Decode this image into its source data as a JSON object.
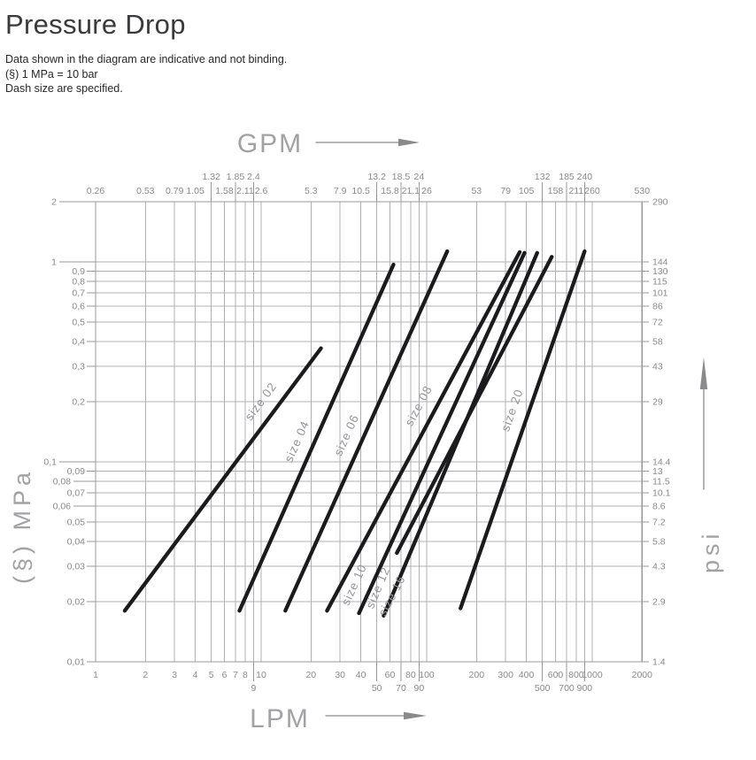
{
  "page": {
    "title": "Pressure Drop",
    "notes": [
      "Data shown in the diagram are indicative and not binding.",
      "(§) 1 MPa = 10 bar",
      "Dash size are specified."
    ]
  },
  "chart_data": {
    "type": "line",
    "x_scale": "log",
    "y_scale": "log",
    "x_axis_bottom": {
      "label": "LPM",
      "min": 1,
      "max": 2000,
      "ticks": [
        {
          "v": 1,
          "t": "1",
          "row": 1
        },
        {
          "v": 2,
          "t": "2",
          "row": 1
        },
        {
          "v": 3,
          "t": "3",
          "row": 1
        },
        {
          "v": 4,
          "t": "4",
          "row": 1
        },
        {
          "v": 5,
          "t": "5",
          "row": 1
        },
        {
          "v": 6,
          "t": "6",
          "row": 1
        },
        {
          "v": 7,
          "t": "7",
          "row": 1
        },
        {
          "v": 8,
          "t": "8",
          "row": 1
        },
        {
          "v": 9,
          "t": "9",
          "row": 2
        },
        {
          "v": 10,
          "t": "10",
          "row": 1
        },
        {
          "v": 20,
          "t": "20",
          "row": 1
        },
        {
          "v": 30,
          "t": "30",
          "row": 1
        },
        {
          "v": 40,
          "t": "40",
          "row": 1
        },
        {
          "v": 50,
          "t": "50",
          "row": 2
        },
        {
          "v": 60,
          "t": "60",
          "row": 1
        },
        {
          "v": 70,
          "t": "70",
          "row": 2
        },
        {
          "v": 80,
          "t": "80",
          "row": 1
        },
        {
          "v": 90,
          "t": "90",
          "row": 2
        },
        {
          "v": 100,
          "t": "100",
          "row": 1
        },
        {
          "v": 200,
          "t": "200",
          "row": 1
        },
        {
          "v": 300,
          "t": "300",
          "row": 1
        },
        {
          "v": 400,
          "t": "400",
          "row": 1
        },
        {
          "v": 500,
          "t": "500",
          "row": 2
        },
        {
          "v": 600,
          "t": "600",
          "row": 1
        },
        {
          "v": 700,
          "t": "700",
          "row": 2
        },
        {
          "v": 800,
          "t": "800",
          "row": 1
        },
        {
          "v": 900,
          "t": "900",
          "row": 2
        },
        {
          "v": 1000,
          "t": "1000",
          "row": 1
        },
        {
          "v": 2000,
          "t": "2000",
          "row": 1
        }
      ]
    },
    "x_axis_top": {
      "label": "GPM",
      "ticks": [
        {
          "v": 1,
          "t": "0.26",
          "raised": false
        },
        {
          "v": 2,
          "t": "0.53",
          "raised": false
        },
        {
          "v": 3,
          "t": "0.79",
          "raised": false
        },
        {
          "v": 4,
          "t": "1.05",
          "raised": false
        },
        {
          "v": 5,
          "t": "1.32",
          "raised": true
        },
        {
          "v": 6,
          "t": "1.58",
          "raised": false
        },
        {
          "v": 7,
          "t": "1.85",
          "raised": true
        },
        {
          "v": 8,
          "t": "2.11",
          "raised": false
        },
        {
          "v": 9,
          "t": "2.4",
          "raised": true
        },
        {
          "v": 10,
          "t": "2.6",
          "raised": false
        },
        {
          "v": 20,
          "t": "5.3",
          "raised": false
        },
        {
          "v": 30,
          "t": "7.9",
          "raised": false
        },
        {
          "v": 40,
          "t": "10.5",
          "raised": false
        },
        {
          "v": 50,
          "t": "13.2",
          "raised": true
        },
        {
          "v": 60,
          "t": "15.8",
          "raised": false
        },
        {
          "v": 70,
          "t": "18.5",
          "raised": true
        },
        {
          "v": 80,
          "t": "21.1",
          "raised": false
        },
        {
          "v": 90,
          "t": "24",
          "raised": true
        },
        {
          "v": 100,
          "t": "26",
          "raised": false
        },
        {
          "v": 200,
          "t": "53",
          "raised": false
        },
        {
          "v": 300,
          "t": "79",
          "raised": false
        },
        {
          "v": 400,
          "t": "105",
          "raised": false
        },
        {
          "v": 500,
          "t": "132",
          "raised": true
        },
        {
          "v": 600,
          "t": "158",
          "raised": false
        },
        {
          "v": 700,
          "t": "185",
          "raised": true
        },
        {
          "v": 800,
          "t": "211",
          "raised": false
        },
        {
          "v": 900,
          "t": "240",
          "raised": true
        },
        {
          "v": 1000,
          "t": "260",
          "raised": false
        },
        {
          "v": 2000,
          "t": "530",
          "raised": false
        }
      ]
    },
    "y_axis_left": {
      "label": "(§) MPa",
      "min": 0.01,
      "max": 2,
      "ticks": [
        {
          "v": 2,
          "t": "2",
          "tier": "A"
        },
        {
          "v": 1,
          "t": "1",
          "tier": "A"
        },
        {
          "v": 0.9,
          "t": "0,9",
          "tier": "C"
        },
        {
          "v": 0.8,
          "t": "0,8",
          "tier": "C"
        },
        {
          "v": 0.7,
          "t": "0,7",
          "tier": "C"
        },
        {
          "v": 0.6,
          "t": "0,6",
          "tier": "C"
        },
        {
          "v": 0.5,
          "t": "0,5",
          "tier": "C"
        },
        {
          "v": 0.4,
          "t": "0,4",
          "tier": "C"
        },
        {
          "v": 0.3,
          "t": "0,3",
          "tier": "C"
        },
        {
          "v": 0.2,
          "t": "0,2",
          "tier": "C"
        },
        {
          "v": 0.1,
          "t": "0,1",
          "tier": "A"
        },
        {
          "v": 0.09,
          "t": "0,09",
          "tier": "C"
        },
        {
          "v": 0.08,
          "t": "0,08",
          "tier": "B"
        },
        {
          "v": 0.07,
          "t": "0,07",
          "tier": "C"
        },
        {
          "v": 0.06,
          "t": "0,06",
          "tier": "B"
        },
        {
          "v": 0.05,
          "t": "0,05",
          "tier": "C"
        },
        {
          "v": 0.04,
          "t": "0,04",
          "tier": "C"
        },
        {
          "v": 0.03,
          "t": "0,03",
          "tier": "C"
        },
        {
          "v": 0.02,
          "t": "0,02",
          "tier": "C"
        },
        {
          "v": 0.01,
          "t": "0,01",
          "tier": "C"
        }
      ]
    },
    "y_axis_right": {
      "label": "psi",
      "ticks": [
        {
          "v": 2,
          "t": "290"
        },
        {
          "v": 1,
          "t": "144"
        },
        {
          "v": 0.9,
          "t": "130"
        },
        {
          "v": 0.8,
          "t": "115"
        },
        {
          "v": 0.7,
          "t": "101"
        },
        {
          "v": 0.6,
          "t": "86"
        },
        {
          "v": 0.5,
          "t": "72"
        },
        {
          "v": 0.4,
          "t": "58"
        },
        {
          "v": 0.3,
          "t": "43"
        },
        {
          "v": 0.2,
          "t": "29"
        },
        {
          "v": 0.1,
          "t": "14.4"
        },
        {
          "v": 0.09,
          "t": "13"
        },
        {
          "v": 0.08,
          "t": "11.5"
        },
        {
          "v": 0.07,
          "t": "10.1"
        },
        {
          "v": 0.06,
          "t": "8.6"
        },
        {
          "v": 0.05,
          "t": "7.2"
        },
        {
          "v": 0.04,
          "t": "5.8"
        },
        {
          "v": 0.03,
          "t": "4.3"
        },
        {
          "v": 0.02,
          "t": "2.9"
        },
        {
          "v": 0.01,
          "t": "1.4"
        }
      ]
    },
    "series": [
      {
        "name": "size 02",
        "points": [
          [
            1.5,
            0.018
          ],
          [
            23,
            0.37
          ]
        ],
        "label_t": 0.76,
        "label_side": -1
      },
      {
        "name": "size 04",
        "points": [
          [
            7.4,
            0.018
          ],
          [
            63,
            0.97
          ]
        ],
        "label_t": 0.47,
        "label_side": -1
      },
      {
        "name": "size 06",
        "points": [
          [
            14,
            0.018
          ],
          [
            133,
            1.13
          ]
        ],
        "label_t": 0.47,
        "label_side": -1
      },
      {
        "name": "size 08",
        "points": [
          [
            25,
            0.018
          ],
          [
            365,
            1.12
          ]
        ],
        "label_t": 0.55,
        "label_side": -1
      },
      {
        "name": "size 10",
        "points": [
          [
            39,
            0.0175
          ],
          [
            390,
            1.11
          ]
        ],
        "label_t": 0.06,
        "label_side": -1
      },
      {
        "name": "size 12",
        "points": [
          [
            55,
            0.017
          ],
          [
            465,
            1.11
          ]
        ],
        "label_t": 0.06,
        "label_side": -1
      },
      {
        "name": "size 16",
        "points": [
          [
            66,
            0.035
          ],
          [
            570,
            1.06
          ]
        ],
        "label_t": -0.12,
        "label_side": 1
      },
      {
        "name": "size 20",
        "points": [
          [
            160,
            0.0185
          ],
          [
            900,
            1.13
          ]
        ],
        "label_t": 0.54,
        "label_side": -1
      }
    ],
    "colors": {
      "grid": "#b0b0b3",
      "axis": "#98989b",
      "tick_text": "#8a8a8d",
      "unit_text": "#a2a2a5",
      "series_line": "#1b1b1d",
      "series_label": "#94949a"
    }
  }
}
